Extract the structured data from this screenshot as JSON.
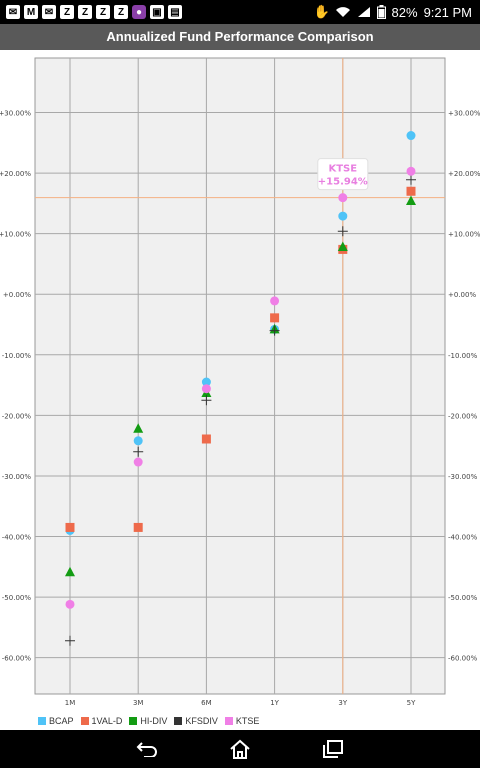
{
  "statusbar": {
    "left_icons": [
      "mail-icon",
      "mail-icon",
      "z-app-icon",
      "z-app-icon",
      "z-app-icon",
      "z-app-icon",
      "app-icon",
      "shopping-icon",
      "briefcase-icon"
    ],
    "battery": "82%",
    "time": "9:21 PM"
  },
  "header": {
    "title": "Annualized Fund Performance Comparison"
  },
  "chart_data": {
    "type": "scatter",
    "categories": [
      "1M",
      "3M",
      "6M",
      "1Y",
      "3Y",
      "5Y"
    ],
    "ylim": [
      -66,
      39
    ],
    "yticks": [
      -60,
      -50,
      -40,
      -30,
      -20,
      -10,
      0,
      10,
      20,
      30
    ],
    "ytick_labels": [
      "-60.00%",
      "-50.00%",
      "-40.00%",
      "-30.00%",
      "-20.00%",
      "-10.00%",
      "+0.00%",
      "+10.00%",
      "+20.00%",
      "+30.00%"
    ],
    "grid": true,
    "legend_position": "bottom-left",
    "series": [
      {
        "name": "BCAP",
        "color": "#4fc3f7",
        "marker": "circle",
        "values": [
          -39.0,
          -24.2,
          -14.5,
          -5.8,
          12.9,
          26.2
        ]
      },
      {
        "name": "1VAL-D",
        "color": "#ee6a4b",
        "marker": "square",
        "values": [
          -38.5,
          -38.5,
          -23.9,
          -3.9,
          7.4,
          17.0
        ]
      },
      {
        "name": "HI-DIV",
        "color": "#139c13",
        "marker": "triangle",
        "values": [
          -45.9,
          -22.2,
          -16.3,
          -5.8,
          7.8,
          15.4
        ]
      },
      {
        "name": "KFSDIV",
        "color": "#333333",
        "marker": "plus",
        "values": [
          -57.2,
          -26.0,
          -17.5,
          -6.0,
          10.4,
          18.9
        ]
      },
      {
        "name": "KTSE",
        "color": "#f07fe6",
        "marker": "circle",
        "values": [
          -51.2,
          -27.7,
          -15.6,
          -1.1,
          15.94,
          20.3
        ]
      }
    ],
    "highlight": {
      "series": "KTSE",
      "category": "3Y",
      "label_name": "KTSE",
      "label_value": "+15.94%",
      "line_color": "#f4b183"
    }
  },
  "navbar": {
    "back": "back-icon",
    "home": "home-icon",
    "recents": "recents-icon"
  }
}
